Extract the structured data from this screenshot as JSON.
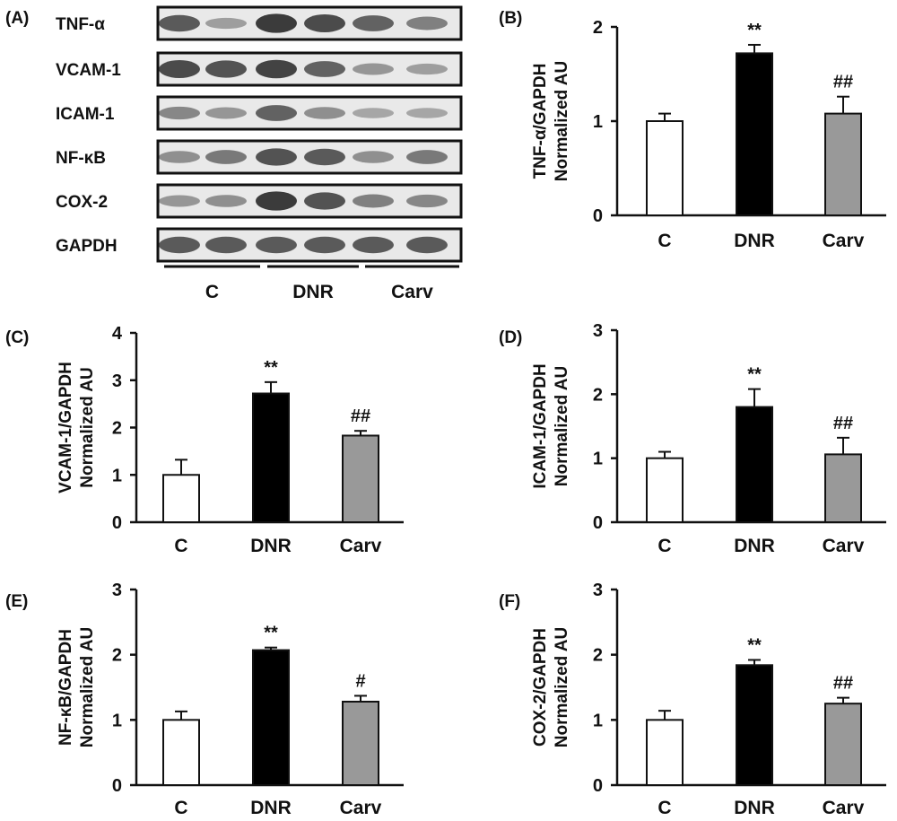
{
  "blot": {
    "panel_letter": "(A)",
    "proteins": [
      "TNF-α",
      "VCAM-1",
      "ICAM-1",
      "NF-κB",
      "COX-2",
      "GAPDH"
    ],
    "groups": [
      "C",
      "DNR",
      "Carv"
    ],
    "band_intensity": [
      [
        0.75,
        0.3,
        0.95,
        0.85,
        0.7,
        0.5
      ],
      [
        0.85,
        0.8,
        0.9,
        0.7,
        0.35,
        0.3
      ],
      [
        0.45,
        0.35,
        0.7,
        0.4,
        0.25,
        0.25
      ],
      [
        0.4,
        0.55,
        0.8,
        0.75,
        0.4,
        0.55
      ],
      [
        0.35,
        0.4,
        0.95,
        0.8,
        0.5,
        0.45
      ],
      [
        0.75,
        0.75,
        0.75,
        0.75,
        0.75,
        0.75
      ]
    ]
  },
  "chart_data": [
    {
      "type": "bar",
      "panel": "(B)",
      "categories": [
        "C",
        "DNR",
        "Carv"
      ],
      "values": [
        1.0,
        1.72,
        1.08
      ],
      "errors": [
        0.08,
        0.09,
        0.18
      ],
      "significance": [
        "",
        "**",
        "##"
      ],
      "ylabel": [
        "TNF-α/GAPDH",
        "Normalized AU"
      ],
      "ylim": [
        0,
        2
      ],
      "yticks": [
        0,
        1,
        2
      ],
      "bar_colors": [
        "#ffffff",
        "#000000",
        "#999999"
      ]
    },
    {
      "type": "bar",
      "panel": "(C)",
      "categories": [
        "C",
        "DNR",
        "Carv"
      ],
      "values": [
        1.0,
        2.72,
        1.83
      ],
      "errors": [
        0.32,
        0.24,
        0.1
      ],
      "significance": [
        "",
        "**",
        "##"
      ],
      "ylabel": [
        "VCAM-1/GAPDH",
        "Normalized AU"
      ],
      "ylim": [
        0,
        4
      ],
      "yticks": [
        0,
        1,
        2,
        3,
        4
      ],
      "bar_colors": [
        "#ffffff",
        "#000000",
        "#999999"
      ]
    },
    {
      "type": "bar",
      "panel": "(D)",
      "categories": [
        "C",
        "DNR",
        "Carv"
      ],
      "values": [
        1.0,
        1.8,
        1.06
      ],
      "errors": [
        0.1,
        0.28,
        0.26
      ],
      "significance": [
        "",
        "**",
        "##"
      ],
      "ylabel": [
        "ICAM-1/GAPDH",
        "Normalized AU"
      ],
      "ylim": [
        0,
        3
      ],
      "yticks": [
        0,
        1,
        2,
        3
      ],
      "bar_colors": [
        "#ffffff",
        "#000000",
        "#999999"
      ]
    },
    {
      "type": "bar",
      "panel": "(E)",
      "categories": [
        "C",
        "DNR",
        "Carv"
      ],
      "values": [
        1.0,
        2.07,
        1.28
      ],
      "errors": [
        0.13,
        0.04,
        0.09
      ],
      "significance": [
        "",
        "**",
        "#"
      ],
      "ylabel": [
        "NF-κB/GAPDH",
        "Normalized AU"
      ],
      "ylim": [
        0,
        3
      ],
      "yticks": [
        0,
        1,
        2,
        3
      ],
      "bar_colors": [
        "#ffffff",
        "#000000",
        "#999999"
      ]
    },
    {
      "type": "bar",
      "panel": "(F)",
      "categories": [
        "C",
        "DNR",
        "Carv"
      ],
      "values": [
        1.0,
        1.84,
        1.25
      ],
      "errors": [
        0.14,
        0.08,
        0.09
      ],
      "significance": [
        "",
        "**",
        "##"
      ],
      "ylabel": [
        "COX-2/GAPDH",
        "Normalized AU"
      ],
      "ylim": [
        0,
        3
      ],
      "yticks": [
        0,
        1,
        2,
        3
      ],
      "bar_colors": [
        "#ffffff",
        "#000000",
        "#999999"
      ]
    }
  ]
}
